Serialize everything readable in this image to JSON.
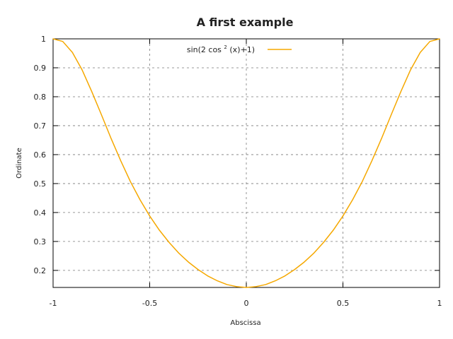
{
  "chart_data": {
    "type": "line",
    "title": "A first example",
    "xlabel": "Abscissa",
    "ylabel": "Ordinate",
    "xlim": [
      -1,
      1
    ],
    "ylim": [
      0.1411,
      1
    ],
    "x_ticks": [
      -1,
      -0.5,
      0,
      0.5,
      1
    ],
    "x_tick_labels": [
      "-1",
      "-0.5",
      "0",
      "0.5",
      "1"
    ],
    "y_ticks": [
      0.2,
      0.3,
      0.4,
      0.5,
      0.6,
      0.7,
      0.8,
      0.9,
      1
    ],
    "y_tick_labels": [
      "0.2",
      "0.3",
      "0.4",
      "0.5",
      "0.6",
      "0.7",
      "0.8",
      "0.9",
      "1"
    ],
    "grid": true,
    "legend_position": "top-center",
    "legend": {
      "prefix": "sin(2 cos",
      "superscript": "2",
      "suffix": "(x)+1)"
    },
    "series": [
      {
        "name": "sin(2 cos^2(x)+1)",
        "color": "#f5a800",
        "x": [
          -1,
          -0.95,
          -0.9,
          -0.85,
          -0.8,
          -0.75,
          -0.7,
          -0.65,
          -0.6,
          -0.55,
          -0.5,
          -0.45,
          -0.4,
          -0.35,
          -0.3,
          -0.25,
          -0.2,
          -0.15,
          -0.1,
          -0.05,
          0,
          0.05,
          0.1,
          0.15,
          0.2,
          0.25,
          0.3,
          0.35,
          0.4,
          0.45,
          0.5,
          0.55,
          0.6,
          0.65,
          0.7,
          0.75,
          0.8,
          0.85,
          0.9,
          0.95,
          1
        ],
        "y": [
          1.0,
          0.991,
          0.953,
          0.893,
          0.818,
          0.738,
          0.656,
          0.579,
          0.507,
          0.444,
          0.388,
          0.339,
          0.297,
          0.26,
          0.229,
          0.203,
          0.181,
          0.164,
          0.151,
          0.144,
          0.141,
          0.144,
          0.151,
          0.164,
          0.181,
          0.203,
          0.229,
          0.26,
          0.297,
          0.339,
          0.388,
          0.444,
          0.507,
          0.579,
          0.656,
          0.738,
          0.818,
          0.893,
          0.953,
          0.991,
          1.0
        ]
      }
    ]
  }
}
